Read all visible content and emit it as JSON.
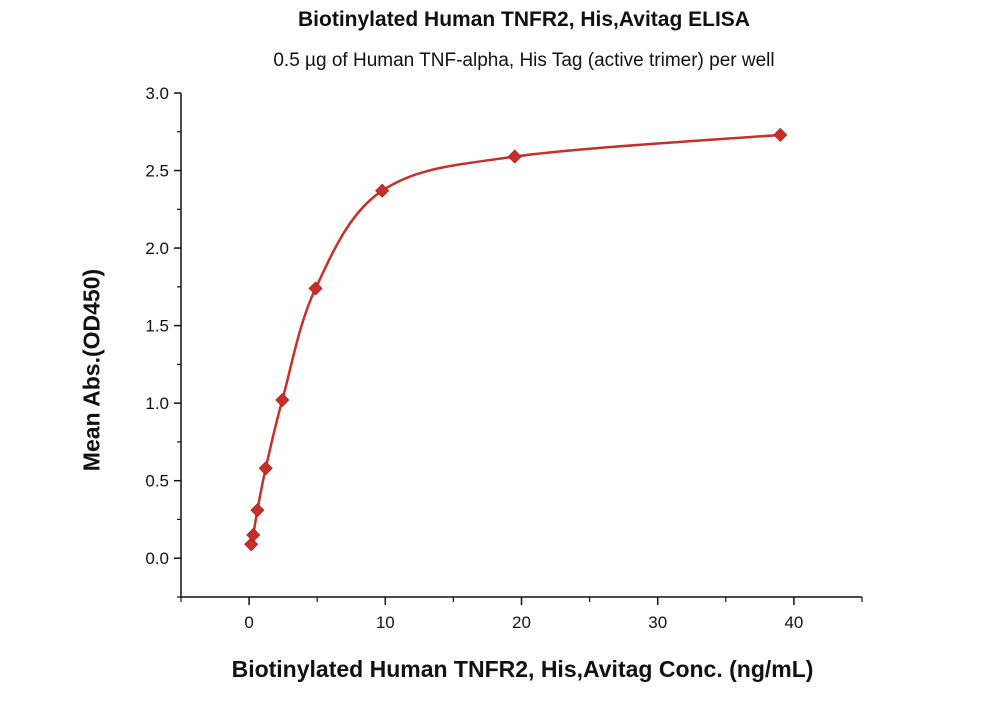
{
  "chart_data": {
    "type": "scatter",
    "title": "Biotinylated Human TNFR2, His,Avitag ELISA",
    "subtitle": "0.5 µg of Human TNF-alpha, His Tag (active trimer) per well",
    "xlabel": "Biotinylated Human TNFR2, His,Avitag Conc. (ng/mL)",
    "ylabel": "Mean Abs.(OD450)",
    "xlim": [
      -5,
      45
    ],
    "ylim": [
      -0.25,
      3.0
    ],
    "xticks": [
      0,
      10,
      20,
      30,
      40
    ],
    "yticks": [
      0.0,
      0.5,
      1.0,
      1.5,
      2.0,
      2.5,
      3.0
    ],
    "xtick_labels": [
      "0",
      "10",
      "20",
      "30",
      "40"
    ],
    "ytick_labels": [
      "0.0",
      "0.5",
      "1.0",
      "1.5",
      "2.0",
      "2.5",
      "3.0"
    ],
    "grid": false,
    "marker": "diamond",
    "color": "#c62f2a",
    "fit_line": true,
    "x": [
      0.153,
      0.305,
      0.61,
      1.22,
      2.44,
      4.88,
      9.77,
      19.5,
      39
    ],
    "y": [
      0.09,
      0.15,
      0.31,
      0.58,
      1.02,
      1.74,
      2.37,
      2.59,
      2.73
    ]
  }
}
